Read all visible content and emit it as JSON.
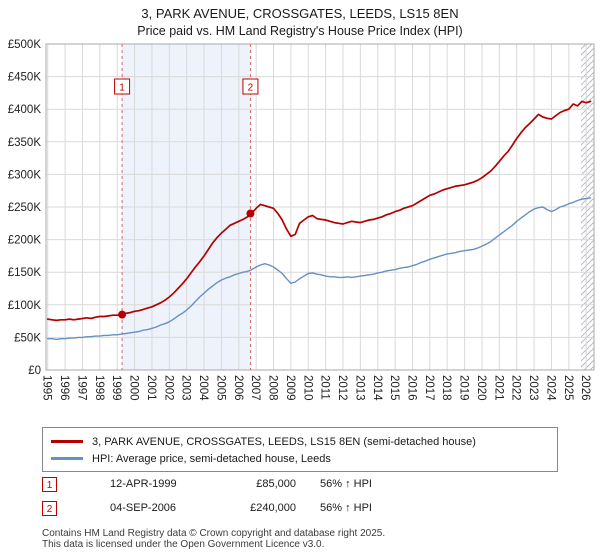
{
  "title": {
    "line1": "3, PARK AVENUE, CROSSGATES, LEEDS, LS15 8EN",
    "line2": "Price paid vs. HM Land Registry's House Price Index (HPI)"
  },
  "legend": {
    "items": [
      {
        "label": "3, PARK AVENUE, CROSSGATES, LEEDS, LS15 8EN (semi-detached house)",
        "color": "#b40000"
      },
      {
        "label": "HPI: Average price, semi-detached house, Leeds",
        "color": "#6691c3"
      }
    ]
  },
  "transactions": [
    {
      "num": "1",
      "date": "12-APR-1999",
      "price": "£85,000",
      "hpi": "56% ↑ HPI"
    },
    {
      "num": "2",
      "date": "04-SEP-2006",
      "price": "£240,000",
      "hpi": "56% ↑ HPI"
    }
  ],
  "footer": {
    "line1": "Contains HM Land Registry data © Crown copyright and database right 2025.",
    "line2": "This data is licensed under the Open Government Licence v3.0."
  },
  "chart_data": {
    "type": "line",
    "title": "3, PARK AVENUE, CROSSGATES, LEEDS, LS15 8EN",
    "subtitle": "Price paid vs. HM Land Registry's House Price Index (HPI)",
    "unit": "GBP thousands",
    "x_range": [
      1994.9,
      2026.45
    ],
    "y_range": [
      0,
      500
    ],
    "grid": true,
    "x_ticks": [
      1995,
      1996,
      1997,
      1998,
      1999,
      2000,
      2001,
      2002,
      2003,
      2004,
      2005,
      2006,
      2007,
      2008,
      2009,
      2010,
      2011,
      2012,
      2013,
      2014,
      2015,
      2016,
      2017,
      2018,
      2019,
      2020,
      2021,
      2022,
      2023,
      2024,
      2025,
      2026
    ],
    "y_tick_values": [
      0,
      50,
      100,
      150,
      200,
      250,
      300,
      350,
      400,
      450,
      500
    ],
    "y_tick_labels": [
      "£0",
      "£50K",
      "£100K",
      "£150K",
      "£200K",
      "£250K",
      "£300K",
      "£350K",
      "£400K",
      "£450K",
      "£500K"
    ],
    "shaded_span": [
      1999.28,
      2006.67
    ],
    "hatched_span": [
      2025.7,
      2026.45
    ],
    "sale_markers": [
      {
        "label": "1",
        "t": 1999.28,
        "value": 85
      },
      {
        "label": "2",
        "t": 2006.67,
        "value": 240
      }
    ],
    "series": [
      {
        "id": "price-paid",
        "name": "3, PARK AVENUE, CROSSGATES, LEEDS, LS15 8EN (semi-detached house)",
        "color": "#b40000",
        "width": 1.7,
        "t0": 1995,
        "dt": 0.25,
        "values": [
          78,
          77,
          76,
          77,
          77,
          78,
          77,
          78,
          79,
          80,
          79,
          81,
          82,
          82,
          83,
          84,
          84,
          85,
          87,
          88,
          90,
          91,
          93,
          95,
          97,
          100,
          103,
          107,
          112,
          118,
          125,
          132,
          140,
          149,
          158,
          166,
          175,
          185,
          195,
          203,
          210,
          216,
          222,
          225,
          228,
          231,
          235,
          241,
          248,
          254,
          252,
          250,
          248,
          240,
          230,
          216,
          205,
          208,
          225,
          230,
          235,
          237,
          232,
          231,
          230,
          228,
          226,
          225,
          224,
          226,
          228,
          227,
          226,
          228,
          230,
          231,
          233,
          235,
          238,
          240,
          243,
          245,
          248,
          250,
          252,
          256,
          260,
          264,
          268,
          270,
          273,
          276,
          278,
          280,
          282,
          283,
          284,
          286,
          288,
          291,
          295,
          300,
          305,
          312,
          320,
          328,
          335,
          345,
          355,
          364,
          372,
          378,
          385,
          392,
          388,
          386,
          385,
          390,
          395,
          398,
          400,
          408,
          405,
          412,
          410,
          412
        ]
      },
      {
        "id": "hpi",
        "name": "HPI: Average price, semi-detached house, Leeds",
        "color": "#6691c3",
        "width": 1.4,
        "t0": 1995,
        "dt": 0.25,
        "values": [
          48,
          48,
          47,
          48,
          48,
          49,
          49,
          50,
          50,
          51,
          51,
          52,
          52,
          53,
          53,
          54,
          54,
          55,
          56,
          57,
          58,
          59,
          61,
          62,
          64,
          66,
          69,
          71,
          74,
          78,
          83,
          87,
          92,
          98,
          105,
          112,
          118,
          124,
          129,
          134,
          138,
          141,
          143,
          146,
          148,
          150,
          151,
          154,
          158,
          161,
          163,
          161,
          158,
          153,
          148,
          140,
          133,
          135,
          140,
          144,
          148,
          149,
          147,
          146,
          144,
          143,
          143,
          142,
          142,
          143,
          142,
          143,
          144,
          145,
          146,
          147,
          149,
          150,
          152,
          153,
          154,
          156,
          157,
          158,
          160,
          162,
          165,
          167,
          170,
          172,
          174,
          176,
          178,
          179,
          180,
          182,
          183,
          184,
          185,
          187,
          190,
          193,
          197,
          202,
          207,
          212,
          217,
          222,
          228,
          233,
          238,
          243,
          247,
          249,
          250,
          246,
          243,
          246,
          250,
          252,
          255,
          257,
          260,
          262,
          263,
          264
        ]
      }
    ],
    "legend_position": "bottom"
  }
}
